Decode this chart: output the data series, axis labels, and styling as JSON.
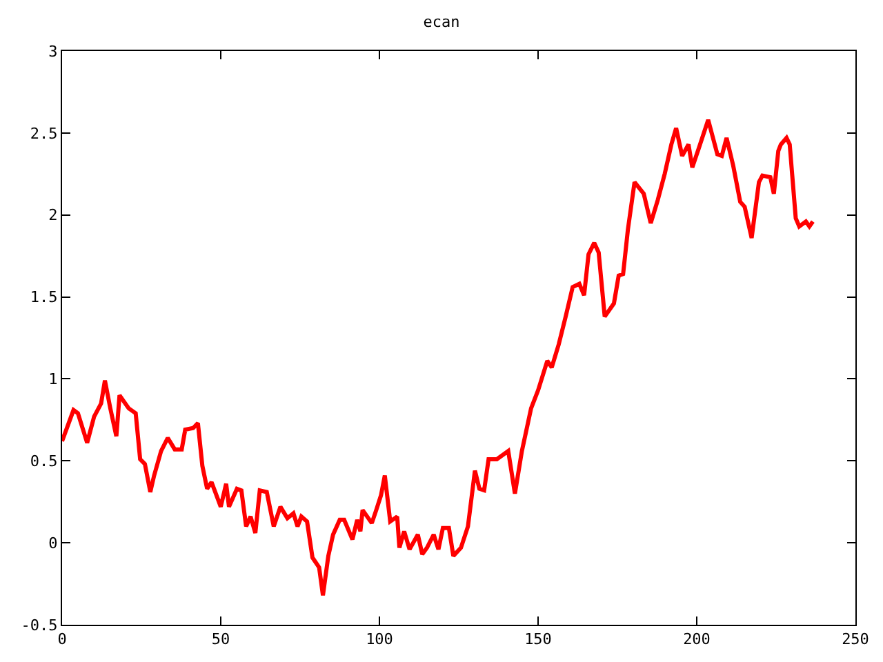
{
  "chart_data": {
    "type": "line",
    "title": "ecan",
    "xlim": [
      0,
      250
    ],
    "xticks": [
      0,
      50,
      100,
      150,
      200,
      250
    ],
    "ylim": [
      -0.5,
      3
    ],
    "yticks": [
      -0.5,
      0,
      0.5,
      1,
      1.5,
      2,
      2.5,
      3
    ],
    "grid": false,
    "marker": "none",
    "line_style": "solid",
    "series": [
      {
        "color": "#ff0000",
        "x": [
          0,
          3.6,
          5,
          7.9,
          10.1,
          12.3,
          13.5,
          15.2,
          17.1,
          18.1,
          21,
          23.2,
          24.6,
          26.1,
          27.8,
          29,
          31.2,
          33.3,
          35.5,
          37.7,
          38.8,
          41.3,
          42.8,
          44.2,
          45.7,
          47.1,
          50,
          51.7,
          52.6,
          55.1,
          56.5,
          58,
          59.4,
          60.9,
          62.3,
          64.5,
          66.7,
          68.8,
          71,
          72.9,
          74.2,
          75.4,
          77.2,
          78.9,
          81,
          82.2,
          83.9,
          85.4,
          87.5,
          88.9,
          91.5,
          93,
          94,
          94.7,
          97.6,
          99,
          100.5,
          101.7,
          103.4,
          105.6,
          106.3,
          107.8,
          109.5,
          112.1,
          113.5,
          115,
          117.1,
          118.6,
          120,
          121.9,
          123.3,
          125.7,
          127.9,
          130.1,
          131.5,
          133,
          134.4,
          137,
          140.6,
          142.7,
          144.9,
          147.8,
          150,
          152.9,
          154.3,
          156.5,
          158.7,
          160.9,
          163,
          164.5,
          165.9,
          167.7,
          169.1,
          171,
          173.9,
          175.4,
          176.8,
          178.3,
          180.4,
          183.3,
          185.5,
          187.7,
          189.9,
          192,
          193.5,
          195.4,
          197.4,
          198.6,
          200.7,
          203.6,
          206.5,
          207.9,
          209.4,
          211.5,
          213.7,
          215.1,
          217.3,
          219.6,
          220.7,
          223.2,
          224.3,
          225.7,
          226.5,
          228.3,
          229.3,
          231.2,
          232.3,
          234.4,
          235.5,
          236.6
        ],
        "values": [
          0.62,
          0.81,
          0.79,
          0.61,
          0.77,
          0.85,
          0.99,
          0.82,
          0.65,
          0.9,
          0.82,
          0.79,
          0.51,
          0.48,
          0.31,
          0.41,
          0.56,
          0.64,
          0.57,
          0.57,
          0.69,
          0.7,
          0.73,
          0.47,
          0.33,
          0.37,
          0.22,
          0.36,
          0.22,
          0.33,
          0.32,
          0.1,
          0.16,
          0.06,
          0.32,
          0.31,
          0.1,
          0.22,
          0.15,
          0.18,
          0.1,
          0.16,
          0.13,
          -0.09,
          -0.15,
          -0.32,
          -0.08,
          0.05,
          0.14,
          0.14,
          0.02,
          0.14,
          0.07,
          0.2,
          0.12,
          0.2,
          0.29,
          0.41,
          0.13,
          0.16,
          -0.03,
          0.07,
          -0.04,
          0.05,
          -0.07,
          -0.03,
          0.05,
          -0.04,
          0.09,
          0.09,
          -0.08,
          -0.03,
          0.1,
          0.44,
          0.33,
          0.32,
          0.51,
          0.51,
          0.56,
          0.3,
          0.56,
          0.82,
          0.93,
          1.11,
          1.07,
          1.21,
          1.38,
          1.56,
          1.58,
          1.51,
          1.76,
          1.83,
          1.77,
          1.38,
          1.46,
          1.63,
          1.64,
          1.91,
          2.2,
          2.13,
          1.95,
          2.09,
          2.25,
          2.43,
          2.53,
          2.36,
          2.43,
          2.29,
          2.41,
          2.58,
          2.37,
          2.36,
          2.47,
          2.3,
          2.08,
          2.05,
          1.86,
          2.2,
          2.24,
          2.23,
          2.13,
          2.39,
          2.43,
          2.47,
          2.43,
          1.98,
          1.93,
          1.96,
          1.93,
          1.96
        ]
      }
    ]
  }
}
